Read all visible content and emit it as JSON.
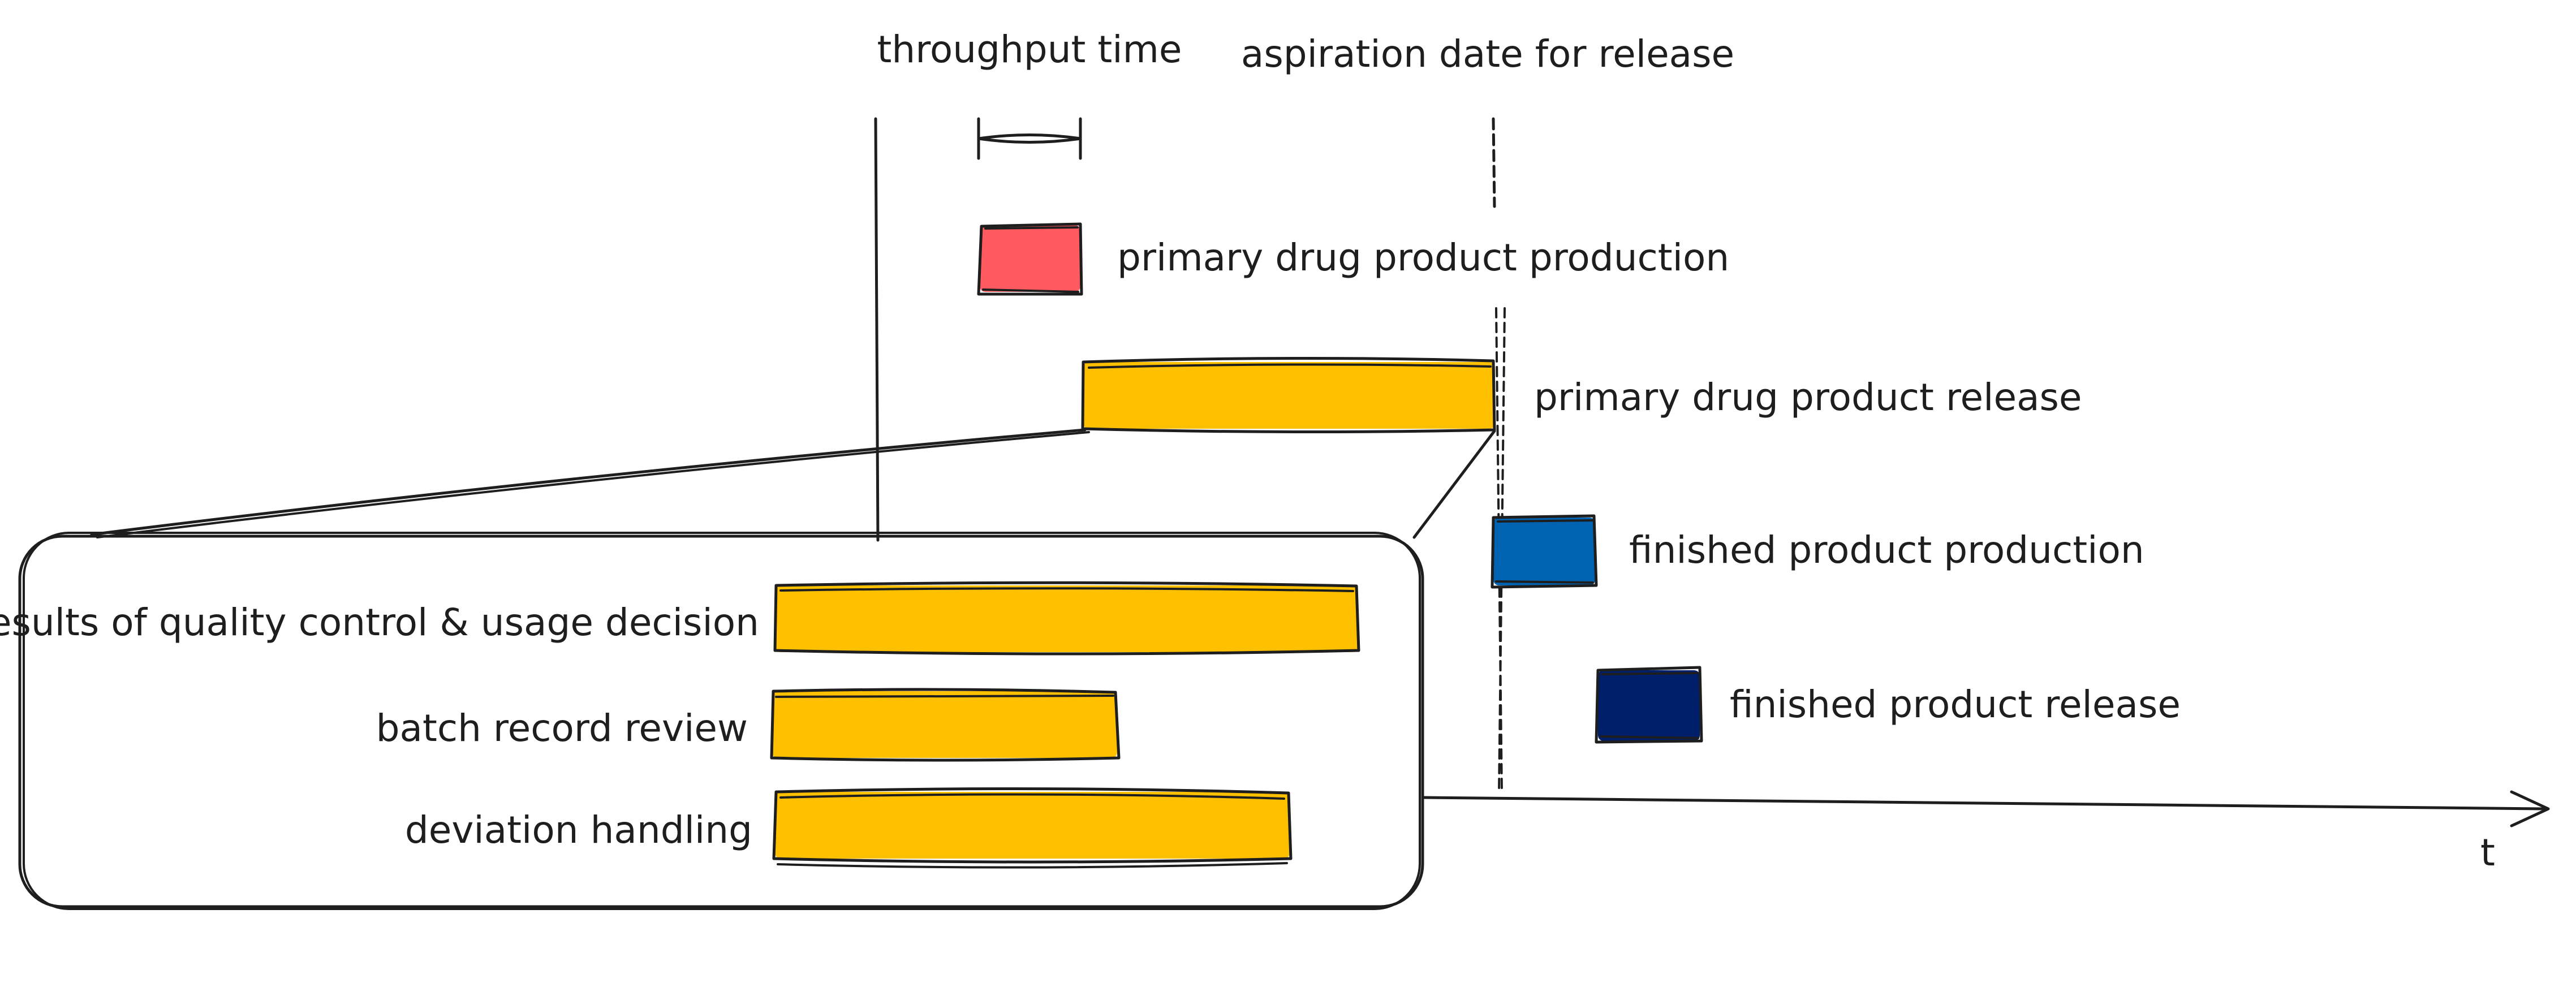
{
  "labels": {
    "throughput_time": "throughput time",
    "aspiration_date": "aspiration date for release",
    "primary_production": "primary drug product production",
    "primary_release": "primary drug product release",
    "finished_production": "finished product production",
    "finished_release": "finished product release",
    "qc_results": "results of quality control & usage decision",
    "batch_record": "batch record review",
    "deviation": "deviation handling",
    "time_axis": "t"
  },
  "colors": {
    "primary_production": "#ff5a5f",
    "release_bars": "#ffc000",
    "finished_production": "#0063b1",
    "finished_release": "#001f6b",
    "ink": "#1e1e1e"
  }
}
